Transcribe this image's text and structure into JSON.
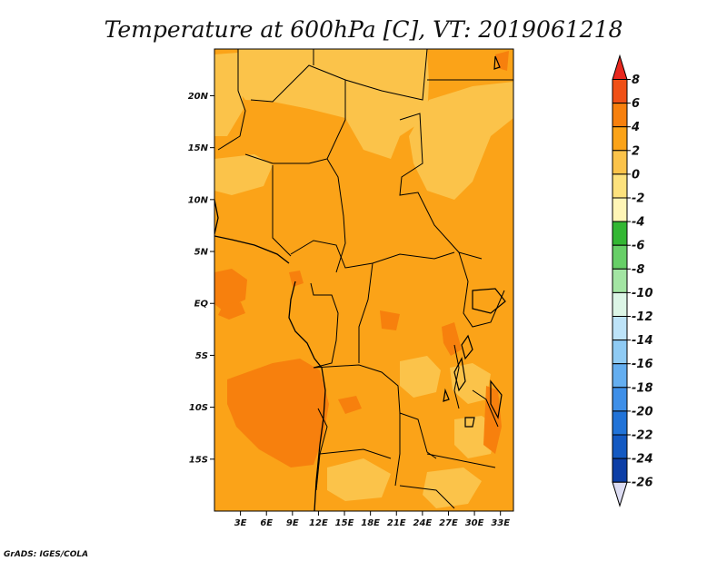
{
  "title": "Temperature at 600hPa [C], VT: 2019061218",
  "credit": "GrADS: IGES/COLA",
  "map": {
    "lon_range": [
      0,
      34.5
    ],
    "lat_range": [
      -20,
      24.5
    ],
    "lat_ticks": [
      {
        "value": 20,
        "label": "20N"
      },
      {
        "value": 15,
        "label": "15N"
      },
      {
        "value": 10,
        "label": "10N"
      },
      {
        "value": 5,
        "label": "5N"
      },
      {
        "value": 0,
        "label": "EQ"
      },
      {
        "value": -5,
        "label": "5S"
      },
      {
        "value": -10,
        "label": "10S"
      },
      {
        "value": -15,
        "label": "15S"
      }
    ],
    "lon_ticks": [
      {
        "value": 3,
        "label": "3E"
      },
      {
        "value": 6,
        "label": "6E"
      },
      {
        "value": 9,
        "label": "9E"
      },
      {
        "value": 12,
        "label": "12E"
      },
      {
        "value": 15,
        "label": "15E"
      },
      {
        "value": 18,
        "label": "18E"
      },
      {
        "value": 21,
        "label": "21E"
      },
      {
        "value": 24,
        "label": "24E"
      },
      {
        "value": 27,
        "label": "27E"
      },
      {
        "value": 30,
        "label": "30E"
      },
      {
        "value": 33,
        "label": "33E"
      }
    ]
  },
  "colorbar": {
    "labels": [
      "8",
      "6",
      "4",
      "2",
      "0",
      "-2",
      "-4",
      "-6",
      "-8",
      "-10",
      "-12",
      "-14",
      "-16",
      "-18",
      "-20",
      "-22",
      "-24",
      "-26"
    ],
    "colors": [
      "#e8281e",
      "#f05016",
      "#f7800d",
      "#fba318",
      "#fbc34a",
      "#fde27d",
      "#fff5b6",
      "#33b733",
      "#67cf67",
      "#a3e5a3",
      "#dcf5e6",
      "#bde3f8",
      "#8fcbf4",
      "#64aef0",
      "#3e8fe8",
      "#2173d8",
      "#1359c2",
      "#0c3ea6",
      "#0a1e74",
      "#dcdcf2"
    ]
  }
}
